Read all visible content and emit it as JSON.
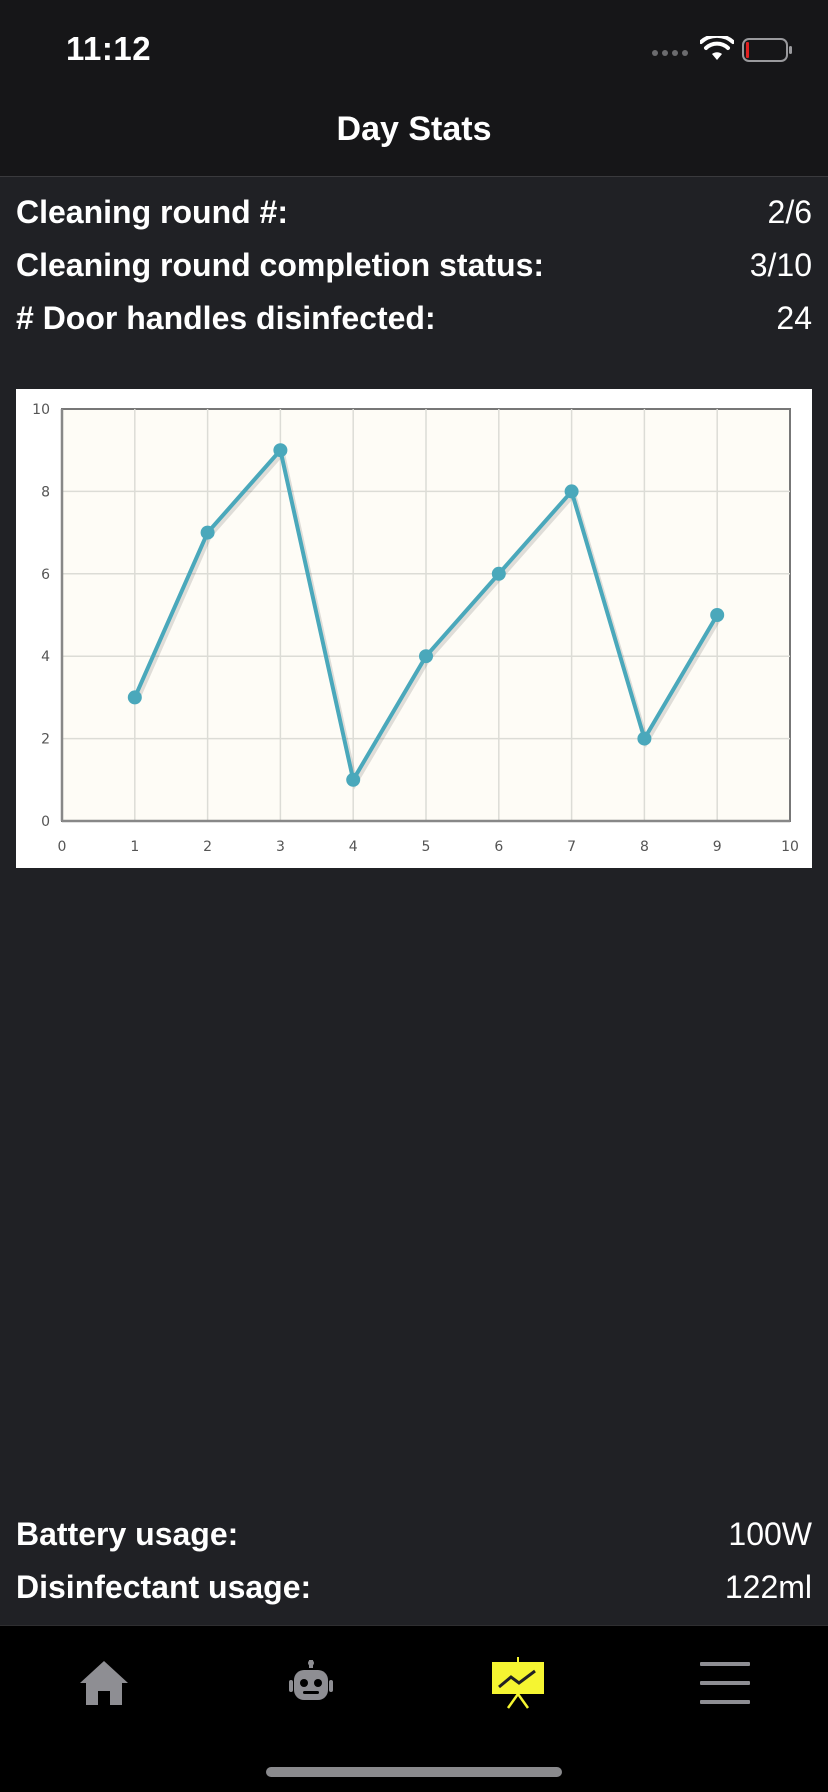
{
  "status_bar": {
    "time": "11:12"
  },
  "header": {
    "title": "Day Stats"
  },
  "stats": [
    {
      "label": "Cleaning round #:",
      "value": "2/6"
    },
    {
      "label": "Cleaning round completion status:",
      "value": "3/10"
    },
    {
      "label": "# Door handles disinfected:",
      "value": "24"
    }
  ],
  "usage": [
    {
      "label": "Battery usage:",
      "value": "100W"
    },
    {
      "label": "Disinfectant usage:",
      "value": "122ml"
    }
  ],
  "chart_data": {
    "type": "line",
    "x": [
      1,
      2,
      3,
      4,
      5,
      6,
      7,
      8,
      9
    ],
    "series": [
      {
        "values": [
          3,
          7,
          9,
          1,
          4,
          6,
          8,
          2,
          5
        ],
        "color": "#4aa8bb"
      }
    ],
    "xlim": [
      0,
      10
    ],
    "ylim": [
      0,
      10
    ],
    "x_ticks": [
      "0",
      "1",
      "2",
      "3",
      "4",
      "5",
      "6",
      "7",
      "8",
      "9",
      "10"
    ],
    "y_ticks": [
      "0",
      "2",
      "4",
      "6",
      "8",
      "10"
    ],
    "grid": true,
    "plot_background": "#fefcf6"
  },
  "tabbar": {
    "tabs": [
      {
        "icon": "home-icon",
        "active": false
      },
      {
        "icon": "robot-icon",
        "active": false
      },
      {
        "icon": "chart-icon",
        "active": true
      },
      {
        "icon": "menu-icon",
        "active": false
      }
    ],
    "active_color": "#f5f531",
    "inactive_color": "#8e8e93"
  },
  "colors": {
    "background": "#202125",
    "header_background": "#161618",
    "tabbar_background": "#000000",
    "battery_low": "#e02020"
  }
}
